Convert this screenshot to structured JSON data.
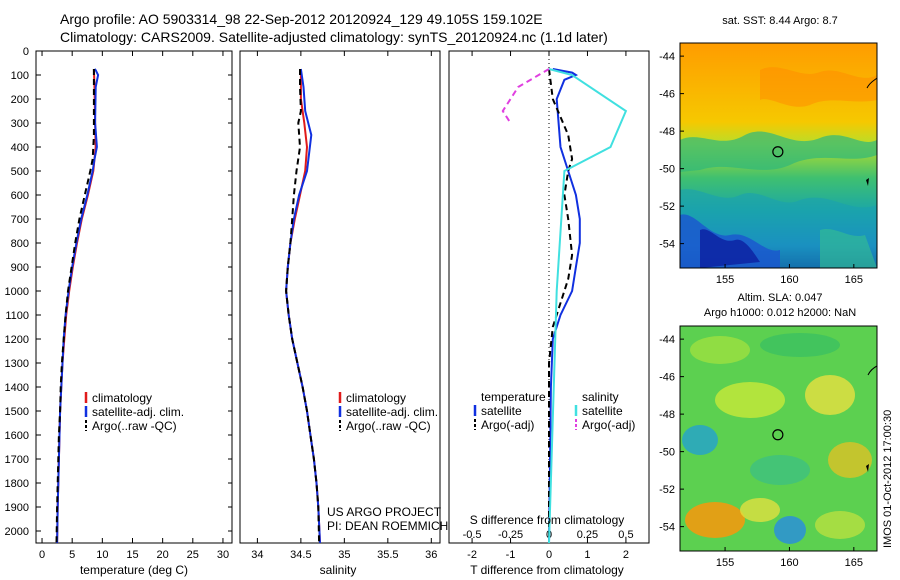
{
  "header": {
    "line1": "Argo profile: AO 5903314_98 22-Sep-2012 20120924_129 49.105S 159.102E",
    "line2": "Climatology: CARS2009. Satellite-adjusted climatology: synTS_20120924.nc (1.1d later)"
  },
  "depth_ticks": [
    "0",
    "100",
    "200",
    "300",
    "400",
    "500",
    "600",
    "700",
    "800",
    "900",
    "1000",
    "1100",
    "1200",
    "1300",
    "1400",
    "1500",
    "1600",
    "1700",
    "1800",
    "1900",
    "2000"
  ],
  "colors": {
    "climatology": "#e01b1b",
    "satellite": "#1030e0",
    "argo": "#000000",
    "salinity_satellite": "#40e0e0",
    "salinity_argo": "#e040e0"
  },
  "chart_data": [
    {
      "type": "line",
      "name": "temperature",
      "xlabel": "temperature (deg C)",
      "xticks": [
        "0",
        "5",
        "10",
        "15",
        "20",
        "25",
        "30"
      ],
      "xlim": [
        -1,
        31.5
      ],
      "ylim": [
        0,
        2050
      ],
      "series": [
        {
          "name": "climatology",
          "style": "solid",
          "points": [
            [
              8.6,
              75
            ],
            [
              8.7,
              150
            ],
            [
              8.8,
              300
            ],
            [
              8.9,
              400
            ],
            [
              8.5,
              500
            ],
            [
              7.6,
              600
            ],
            [
              6.6,
              700
            ],
            [
              5.8,
              800
            ],
            [
              5.1,
              900
            ],
            [
              4.5,
              1000
            ],
            [
              4.0,
              1100
            ],
            [
              3.7,
              1200
            ],
            [
              3.4,
              1300
            ],
            [
              3.2,
              1400
            ],
            [
              3.0,
              1500
            ],
            [
              2.9,
              1600
            ],
            [
              2.8,
              1700
            ],
            [
              2.7,
              1800
            ],
            [
              2.6,
              1900
            ],
            [
              2.5,
              2050
            ]
          ]
        },
        {
          "name": "satellite-adj. clim.",
          "style": "solid",
          "points": [
            [
              8.7,
              75
            ],
            [
              8.9,
              80
            ],
            [
              9.3,
              100
            ],
            [
              8.9,
              150
            ],
            [
              8.8,
              300
            ],
            [
              9.1,
              400
            ],
            [
              8.7,
              450
            ],
            [
              8.4,
              500
            ],
            [
              7.5,
              600
            ],
            [
              6.5,
              700
            ],
            [
              5.7,
              800
            ],
            [
              5.0,
              900
            ],
            [
              4.4,
              1000
            ],
            [
              3.9,
              1100
            ],
            [
              3.6,
              1200
            ],
            [
              3.4,
              1300
            ],
            [
              3.2,
              1400
            ],
            [
              3.0,
              1500
            ],
            [
              2.9,
              1600
            ],
            [
              2.8,
              1700
            ],
            [
              2.7,
              1800
            ],
            [
              2.6,
              1900
            ],
            [
              2.5,
              2050
            ]
          ]
        },
        {
          "name": "Argo(..raw -QC)",
          "style": "dashed",
          "points": [
            [
              8.6,
              75
            ],
            [
              8.6,
              200
            ],
            [
              8.6,
              350
            ],
            [
              8.4,
              450
            ],
            [
              8.0,
              500
            ],
            [
              7.1,
              600
            ],
            [
              6.2,
              700
            ],
            [
              5.5,
              800
            ],
            [
              4.9,
              900
            ],
            [
              4.3,
              1000
            ],
            [
              3.9,
              1100
            ],
            [
              3.6,
              1200
            ],
            [
              3.3,
              1300
            ],
            [
              3.1,
              1400
            ],
            [
              3.0,
              1500
            ],
            [
              2.8,
              1600
            ],
            [
              2.7,
              1700
            ],
            [
              2.6,
              1800
            ],
            [
              2.5,
              1900
            ],
            [
              2.4,
              2050
            ]
          ]
        }
      ],
      "legend": {
        "placement": "lower-right",
        "entries": [
          "climatology",
          "satellite-adj. clim.",
          "Argo(..raw -QC)"
        ]
      }
    },
    {
      "type": "line",
      "name": "salinity",
      "xlabel": "salinity",
      "xticks": [
        "34",
        "34.5",
        "35",
        "35.5",
        "36"
      ],
      "xlim": [
        33.8,
        36.1
      ],
      "ylim": [
        0,
        2050
      ],
      "series": [
        {
          "name": "climatology",
          "style": "solid",
          "points": [
            [
              34.5,
              75
            ],
            [
              34.5,
              200
            ],
            [
              34.54,
              300
            ],
            [
              34.57,
              400
            ],
            [
              34.55,
              500
            ],
            [
              34.49,
              600
            ],
            [
              34.43,
              700
            ],
            [
              34.38,
              800
            ],
            [
              34.35,
              900
            ],
            [
              34.33,
              1000
            ],
            [
              34.36,
              1100
            ],
            [
              34.4,
              1200
            ],
            [
              34.46,
              1300
            ],
            [
              34.52,
              1400
            ],
            [
              34.57,
              1500
            ],
            [
              34.61,
              1600
            ],
            [
              34.65,
              1700
            ],
            [
              34.68,
              1800
            ],
            [
              34.7,
              1900
            ],
            [
              34.72,
              2050
            ]
          ]
        },
        {
          "name": "satellite-adj. clim.",
          "style": "solid",
          "points": [
            [
              34.5,
              75
            ],
            [
              34.53,
              150
            ],
            [
              34.55,
              250
            ],
            [
              34.62,
              350
            ],
            [
              34.57,
              500
            ],
            [
              34.48,
              600
            ],
            [
              34.42,
              700
            ],
            [
              34.38,
              800
            ],
            [
              34.35,
              900
            ],
            [
              34.33,
              1000
            ],
            [
              34.36,
              1100
            ],
            [
              34.4,
              1200
            ],
            [
              34.46,
              1300
            ],
            [
              34.52,
              1400
            ],
            [
              34.57,
              1500
            ],
            [
              34.61,
              1600
            ],
            [
              34.65,
              1700
            ],
            [
              34.68,
              1800
            ],
            [
              34.7,
              1900
            ],
            [
              34.72,
              2050
            ]
          ]
        },
        {
          "name": "Argo(..raw -QC)",
          "style": "dashed",
          "points": [
            [
              34.49,
              75
            ],
            [
              34.49,
              150
            ],
            [
              34.5,
              250
            ],
            [
              34.47,
              300
            ],
            [
              34.49,
              400
            ],
            [
              34.45,
              500
            ],
            [
              34.42,
              600
            ],
            [
              34.4,
              700
            ],
            [
              34.38,
              800
            ],
            [
              34.35,
              900
            ],
            [
              34.33,
              1000
            ],
            [
              34.36,
              1100
            ],
            [
              34.4,
              1200
            ],
            [
              34.46,
              1300
            ],
            [
              34.52,
              1400
            ],
            [
              34.57,
              1500
            ],
            [
              34.61,
              1600
            ],
            [
              34.65,
              1700
            ],
            [
              34.68,
              1800
            ],
            [
              34.7,
              1900
            ],
            [
              34.71,
              2050
            ]
          ]
        }
      ],
      "legend": {
        "placement": "lower-right",
        "entries": [
          "climatology",
          "satellite-adj. clim.",
          "Argo(..raw -QC)"
        ]
      },
      "annotation": [
        "US ARGO PROJECT",
        "PI: DEAN ROEMMICH"
      ]
    },
    {
      "type": "line",
      "name": "difference",
      "xlabel": "T difference from climatology",
      "xlabel_top": "S difference from climatology",
      "xticks_bottom": [
        "-2",
        "-1",
        "0",
        "1",
        "2"
      ],
      "xticks_top": [
        "-0.5",
        "-0.25",
        "0",
        "0.25",
        "0.5"
      ],
      "xlim": [
        -2.6,
        2.6
      ],
      "ylim": [
        0,
        2050
      ],
      "series": [
        {
          "name": "temperature satellite",
          "style": "solid",
          "points": [
            [
              0.1,
              75
            ],
            [
              0.6,
              90
            ],
            [
              0.7,
              100
            ],
            [
              0.4,
              120
            ],
            [
              0.2,
              200
            ],
            [
              0.3,
              400
            ],
            [
              0.5,
              500
            ],
            [
              0.7,
              600
            ],
            [
              0.8,
              700
            ],
            [
              0.8,
              800
            ],
            [
              0.7,
              900
            ],
            [
              0.6,
              1000
            ],
            [
              0.3,
              1100
            ],
            [
              0.1,
              1200
            ],
            [
              0.05,
              1400
            ],
            [
              0.0,
              2050
            ]
          ]
        },
        {
          "name": "temperature Argo(-adj)",
          "style": "dashed",
          "points": [
            [
              0.0,
              75
            ],
            [
              0.1,
              200
            ],
            [
              0.5,
              350
            ],
            [
              0.6,
              450
            ],
            [
              0.5,
              500
            ],
            [
              0.4,
              600
            ],
            [
              0.5,
              700
            ],
            [
              0.6,
              850
            ],
            [
              0.5,
              950
            ],
            [
              0.3,
              1050
            ],
            [
              0.1,
              1150
            ],
            [
              0.0,
              1300
            ],
            [
              0.0,
              2050
            ]
          ]
        },
        {
          "name": "salinity satellite",
          "style": "solid",
          "points": [
            [
              0.0,
              75
            ],
            [
              0.15,
              100
            ],
            [
              0.5,
              250
            ],
            [
              0.4,
              400
            ],
            [
              0.1,
              500
            ],
            [
              0.05,
              1000
            ],
            [
              0.0,
              2050
            ]
          ]
        },
        {
          "name": "salinity Argo(-adj)",
          "style": "dashed",
          "points": [
            [
              0.0,
              75
            ],
            [
              -0.2,
              150
            ],
            [
              -0.3,
              250
            ],
            [
              -0.25,
              300
            ]
          ]
        }
      ],
      "legend": {
        "placement": "lower",
        "temperature": {
          "heading": "temperature",
          "entries": [
            "satellite",
            "Argo(-adj)"
          ]
        },
        "salinity": {
          "heading": "salinity",
          "entries": [
            "satellite",
            "Argo(-adj)"
          ]
        }
      }
    },
    {
      "type": "heatmap",
      "name": "sst-map",
      "title": "sat. SST: 8.44  Argo: 8.7",
      "xticks": [
        "155",
        "160",
        "165"
      ],
      "yticks": [
        "-44",
        "-46",
        "-48",
        "-50",
        "-52",
        "-54"
      ],
      "xlim": [
        151.5,
        166.8
      ],
      "ylim": [
        -55.3,
        -43.3
      ],
      "marker": {
        "lon": 159.1,
        "lat": -49.1
      }
    },
    {
      "type": "heatmap",
      "name": "sla-map",
      "title_line1": "Altim. SLA: 0.047",
      "title_line2": "Argo h1000: 0.012 h2000: NaN",
      "xticks": [
        "155",
        "160",
        "165"
      ],
      "yticks": [
        "-44",
        "-46",
        "-48",
        "-50",
        "-52",
        "-54"
      ],
      "xlim": [
        151.5,
        166.8
      ],
      "ylim": [
        -55.3,
        -43.3
      ],
      "marker": {
        "lon": 159.1,
        "lat": -49.1
      }
    }
  ],
  "footer_stamp": "IMOS 01-Oct-2012 17:00:30"
}
